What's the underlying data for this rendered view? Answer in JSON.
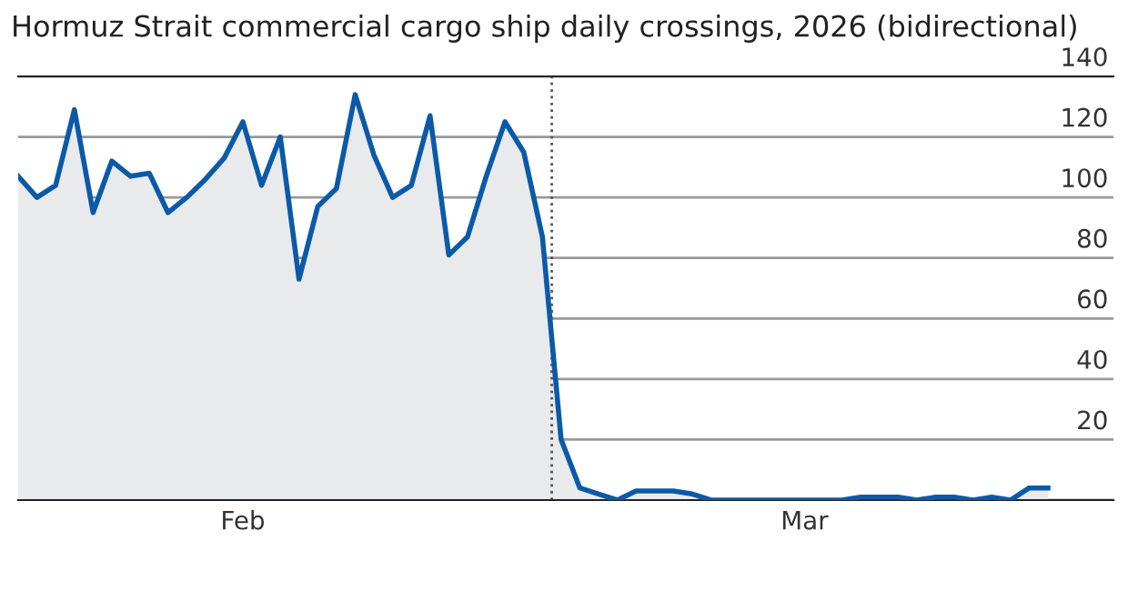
{
  "chart_data": {
    "type": "area",
    "title": "Hormuz Strait commercial cargo ship daily crossings, 2026 (bidirectional)",
    "x": [
      "2026-02-03",
      "2026-02-04",
      "2026-02-05",
      "2026-02-06",
      "2026-02-07",
      "2026-02-08",
      "2026-02-09",
      "2026-02-10",
      "2026-02-11",
      "2026-02-12",
      "2026-02-13",
      "2026-02-14",
      "2026-02-15",
      "2026-02-16",
      "2026-02-17",
      "2026-02-18",
      "2026-02-19",
      "2026-02-20",
      "2026-02-21",
      "2026-02-22",
      "2026-02-23",
      "2026-02-24",
      "2026-02-25",
      "2026-02-26",
      "2026-02-27",
      "2026-02-28",
      "2026-03-01",
      "2026-03-02",
      "2026-03-03",
      "2026-03-04",
      "2026-03-05",
      "2026-03-06",
      "2026-03-07",
      "2026-03-08",
      "2026-03-09",
      "2026-03-10",
      "2026-03-11",
      "2026-03-12",
      "2026-03-13",
      "2026-03-14",
      "2026-03-15",
      "2026-03-16",
      "2026-03-17",
      "2026-03-18",
      "2026-03-19",
      "2026-03-20",
      "2026-03-21",
      "2026-03-22",
      "2026-03-23",
      "2026-03-24",
      "2026-03-25",
      "2026-03-26",
      "2026-03-27",
      "2026-03-28",
      "2026-03-29",
      "2026-03-30"
    ],
    "series": [
      {
        "color": "#0b5aa8",
        "values": [
          107,
          100,
          104,
          129,
          95,
          112,
          107,
          108,
          95,
          100,
          106,
          113,
          125,
          104,
          120,
          73,
          97,
          103,
          134,
          114,
          100,
          104,
          127,
          81,
          87,
          107,
          125,
          115,
          87,
          20,
          4,
          2,
          0,
          3,
          3,
          3,
          2,
          0,
          0,
          0,
          0,
          0,
          0,
          0,
          0,
          1,
          1,
          1,
          0,
          1,
          1,
          0,
          1,
          0,
          4,
          4
        ]
      }
    ],
    "xlim": [
      "2026-02-03",
      "2026-04-02T12:00"
    ],
    "xticks": [
      {
        "value": "2026-02-15",
        "label": "Feb"
      },
      {
        "value": "2026-03-17",
        "label": "Mar"
      }
    ],
    "ylim": [
      0,
      140
    ],
    "yticks": [
      {
        "value": 0,
        "label": null
      },
      20,
      40,
      60,
      80,
      100,
      120,
      140
    ],
    "grid": "y",
    "ref_lines": [
      {
        "axis": "x",
        "value": "2026-03-03T12:00",
        "color": "#555555",
        "line_style": "dotted"
      }
    ]
  }
}
